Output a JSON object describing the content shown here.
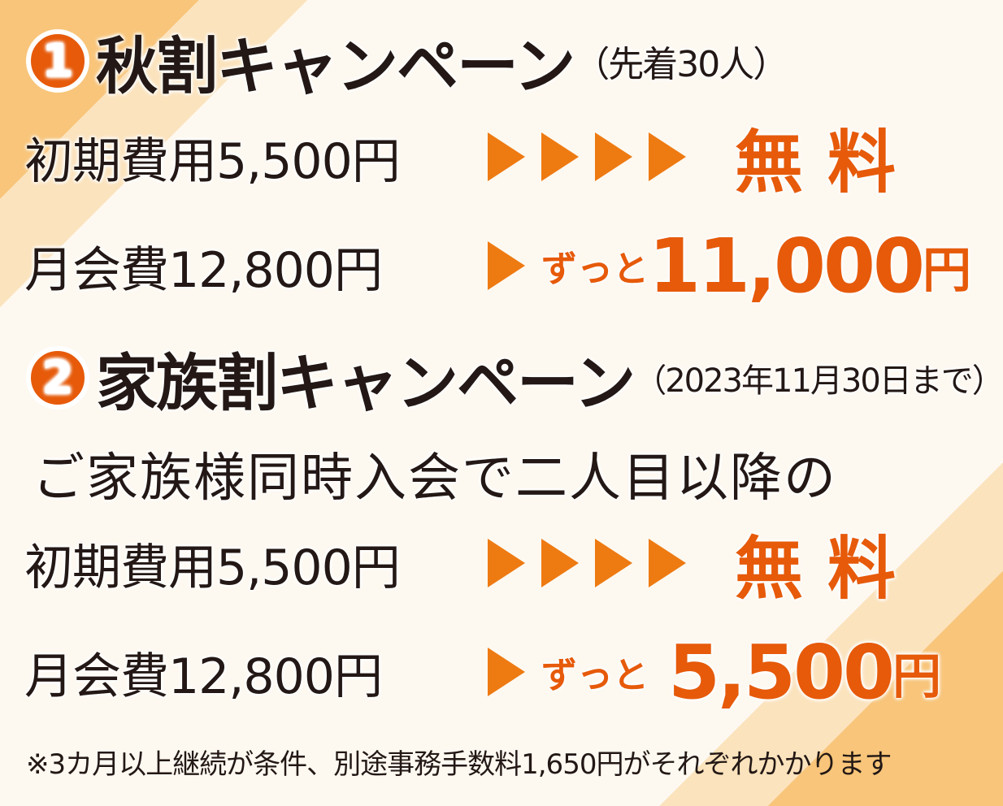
{
  "campaign1": {
    "number": "1",
    "title": "秋割キャンペーン",
    "condition": "（先着30人）",
    "initial_fee": {
      "label": "初期費用5,500円",
      "result": "無料"
    },
    "monthly_fee": {
      "label": "月会費12,800円",
      "prefix": "ずっと",
      "amount": "11,000",
      "unit": "円"
    }
  },
  "campaign2": {
    "number": "2",
    "title": "家族割キャンペーン",
    "condition": "（2023年11月30日まで）",
    "description": "ご家族様同時入会で二人目以降の",
    "initial_fee": {
      "label": "初期費用5,500円",
      "result": "無料"
    },
    "monthly_fee": {
      "label": "月会費12,800円",
      "prefix": "ずっと",
      "amount": "5,500",
      "unit": "円"
    }
  },
  "footnote": "※3カ月以上継続が条件、別途事務手数料1,650円がそれぞれかかります",
  "colors": {
    "accent": "#e65a0a",
    "arrow": "#ee7a12",
    "band": "#f8c57a",
    "background": "#fdf9f1"
  }
}
